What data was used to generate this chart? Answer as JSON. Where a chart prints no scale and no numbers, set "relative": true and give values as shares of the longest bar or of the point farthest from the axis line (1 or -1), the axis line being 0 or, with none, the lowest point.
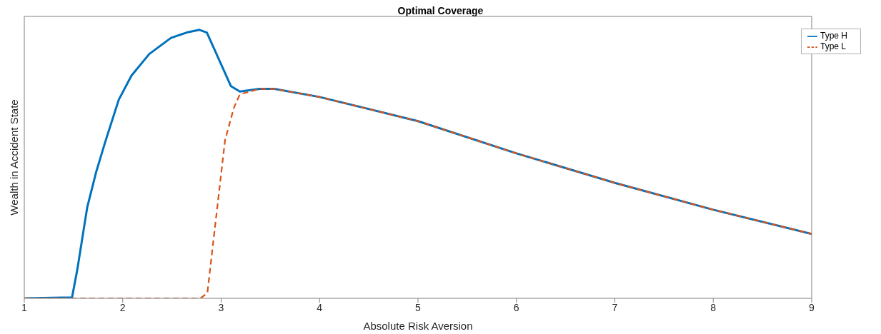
{
  "chart_data": {
    "type": "line",
    "title": "Optimal Coverage",
    "xlabel": "Absolute Risk Aversion",
    "ylabel": "Wealth in Accident State",
    "relative": true,
    "xlim": [
      1,
      9
    ],
    "xticks": [
      1,
      2,
      3,
      4,
      5,
      6,
      7,
      8,
      9
    ],
    "grid": false,
    "legend": "top right",
    "marker": "none",
    "series": [
      {
        "name": "Type H",
        "color": "#0072bd",
        "line_style": "solid",
        "x": [
          1,
          1.485,
          1.54,
          1.64,
          1.73,
          1.82,
          1.96,
          2.09,
          2.27,
          2.49,
          2.65,
          2.78,
          2.855,
          3.1,
          3.19,
          3.39,
          3.54,
          4,
          5,
          6,
          7,
          8,
          9
        ],
        "values": [
          0,
          0.003,
          0.11,
          0.34,
          0.47,
          0.58,
          0.74,
          0.83,
          0.91,
          0.97,
          0.99,
          1,
          0.99,
          0.79,
          0.77,
          0.78,
          0.78,
          0.75,
          0.66,
          0.54,
          0.43,
          0.33,
          0.24
        ]
      },
      {
        "name": "Type L",
        "color": "#d95319",
        "line_style": "dashed",
        "x": [
          1,
          2.79,
          2.86,
          3.04,
          3.13,
          3.19,
          3.39,
          3.54,
          4,
          5,
          6,
          7,
          8,
          9
        ],
        "values": [
          0,
          0,
          0.02,
          0.59,
          0.71,
          0.76,
          0.78,
          0.78,
          0.75,
          0.66,
          0.54,
          0.43,
          0.33,
          0.24
        ]
      }
    ]
  }
}
